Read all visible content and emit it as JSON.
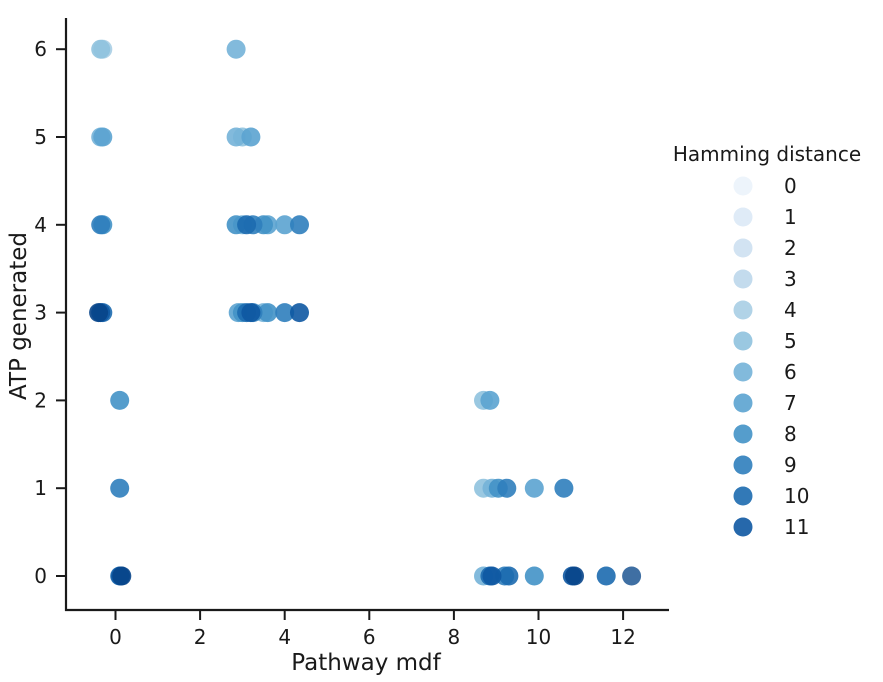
{
  "chart_data": {
    "type": "scatter",
    "title": "",
    "xlabel": "Pathway mdf",
    "ylabel": "ATP generated",
    "xlim": [
      -1.2,
      13.1
    ],
    "ylim": [
      -0.4,
      6.35
    ],
    "xticks": [
      0,
      2,
      4,
      6,
      8,
      10,
      12
    ],
    "yticks": [
      0,
      1,
      2,
      3,
      4,
      5,
      6
    ],
    "grid": false,
    "legend_title": "Hamming distance",
    "legend_position": "right",
    "series": [
      {
        "name": "0",
        "color": "#ebf3fb",
        "points": []
      },
      {
        "name": "1",
        "color": "#dce9f6",
        "points": []
      },
      {
        "name": "2",
        "color": "#cde0f1",
        "points": []
      },
      {
        "name": "3",
        "color": "#bcd7eb",
        "points": []
      },
      {
        "name": "4",
        "color": "#a8cee4",
        "points": [
          {
            "x": -0.3,
            "y": 6
          }
        ]
      },
      {
        "name": "5",
        "color": "#8fc2de",
        "points": [
          {
            "x": -0.35,
            "y": 6
          },
          {
            "x": 8.7,
            "y": 2
          },
          {
            "x": 8.7,
            "y": 1
          },
          {
            "x": 3.0,
            "y": 5
          }
        ]
      },
      {
        "name": "6",
        "color": "#74b3d8",
        "points": [
          {
            "x": 2.85,
            "y": 6
          },
          {
            "x": -0.35,
            "y": 5
          },
          {
            "x": 2.85,
            "y": 5
          },
          {
            "x": 8.9,
            "y": 1
          },
          {
            "x": 8.7,
            "y": 0
          },
          {
            "x": 3.0,
            "y": 4
          },
          {
            "x": 3.5,
            "y": 3
          }
        ]
      },
      {
        "name": "7",
        "color": "#5ba3d0",
        "points": [
          {
            "x": -0.3,
            "y": 5
          },
          {
            "x": 3.2,
            "y": 5
          },
          {
            "x": 8.85,
            "y": 2
          },
          {
            "x": 9.9,
            "y": 1
          },
          {
            "x": 3.6,
            "y": 4
          },
          {
            "x": 4.0,
            "y": 4
          },
          {
            "x": 2.9,
            "y": 3
          }
        ]
      },
      {
        "name": "8",
        "color": "#4292c6",
        "points": [
          {
            "x": 0.1,
            "y": 2
          },
          {
            "x": -0.3,
            "y": 4
          },
          {
            "x": 2.85,
            "y": 4
          },
          {
            "x": 3.5,
            "y": 4
          },
          {
            "x": 9.05,
            "y": 1
          },
          {
            "x": 9.9,
            "y": 0
          },
          {
            "x": 3.0,
            "y": 3
          },
          {
            "x": 3.6,
            "y": 3
          }
        ]
      },
      {
        "name": "9",
        "color": "#2f7ebc",
        "points": [
          {
            "x": -0.35,
            "y": 4
          },
          {
            "x": 0.1,
            "y": 1
          },
          {
            "x": 3.25,
            "y": 4
          },
          {
            "x": 4.35,
            "y": 4
          },
          {
            "x": 9.25,
            "y": 1
          },
          {
            "x": 10.6,
            "y": 1
          },
          {
            "x": 9.2,
            "y": 0
          },
          {
            "x": 4.0,
            "y": 3
          },
          {
            "x": 3.25,
            "y": 3
          }
        ]
      },
      {
        "name": "10",
        "color": "#1c6aaf",
        "points": [
          {
            "x": -0.3,
            "y": 3
          },
          {
            "x": 0.1,
            "y": 0
          },
          {
            "x": 3.1,
            "y": 4
          },
          {
            "x": 8.85,
            "y": 0
          },
          {
            "x": 9.3,
            "y": 0
          },
          {
            "x": 11.6,
            "y": 0
          },
          {
            "x": 3.1,
            "y": 3
          }
        ]
      },
      {
        "name": "11",
        "color": "#0e58a2",
        "points": [
          {
            "x": -0.35,
            "y": 3
          },
          {
            "x": 0.12,
            "y": 0
          },
          {
            "x": 3.2,
            "y": 3
          },
          {
            "x": 4.35,
            "y": 3
          },
          {
            "x": 10.8,
            "y": 0
          },
          {
            "x": 8.9,
            "y": 0
          }
        ]
      },
      {
        "name": "",
        "color": "#08458a",
        "points": [
          {
            "x": -0.4,
            "y": 3
          },
          {
            "x": 0.15,
            "y": 0
          },
          {
            "x": 10.85,
            "y": 0
          }
        ]
      },
      {
        "name": "",
        "color": "#2a5f99",
        "points": [
          {
            "x": 12.2,
            "y": 0
          }
        ]
      }
    ]
  }
}
